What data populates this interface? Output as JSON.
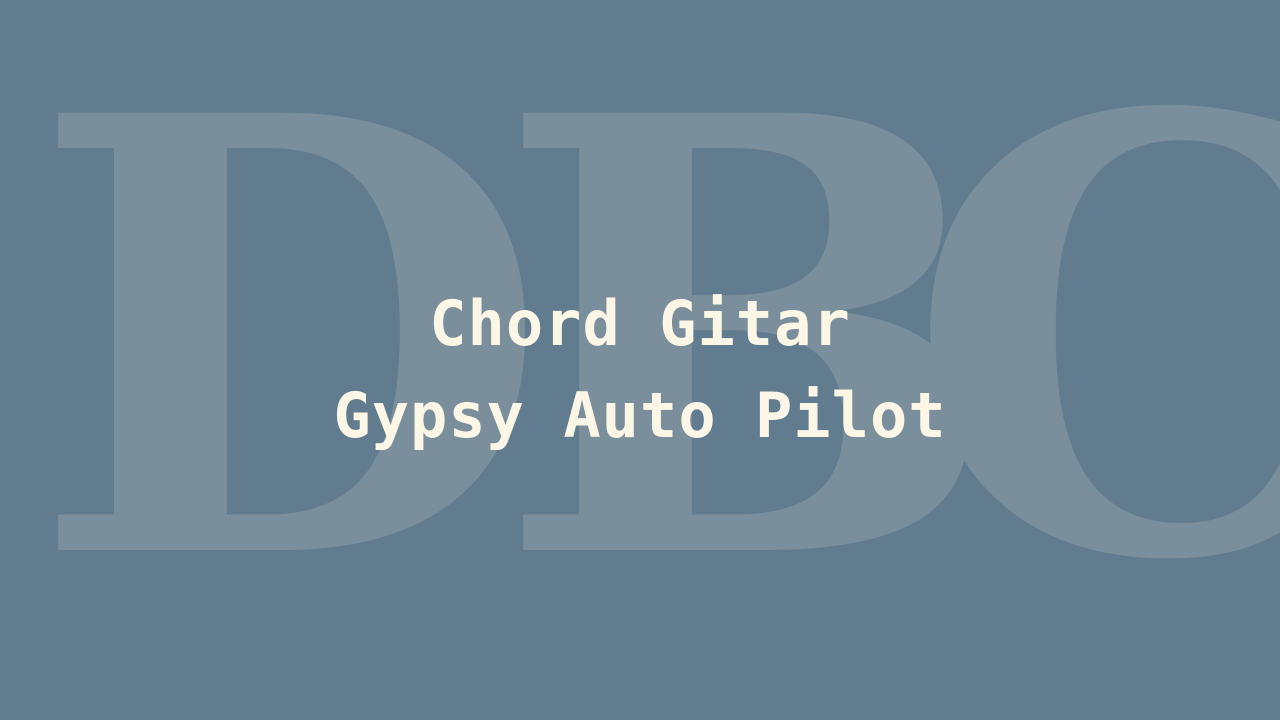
{
  "watermark": {
    "letters": [
      "D",
      "B",
      "C"
    ],
    "color": "#7a8e9b"
  },
  "title": {
    "line1": "Chord Gitar",
    "line2": "Gypsy Auto Pilot",
    "color": "#fcf6e6"
  },
  "background_color": "#607c8e"
}
